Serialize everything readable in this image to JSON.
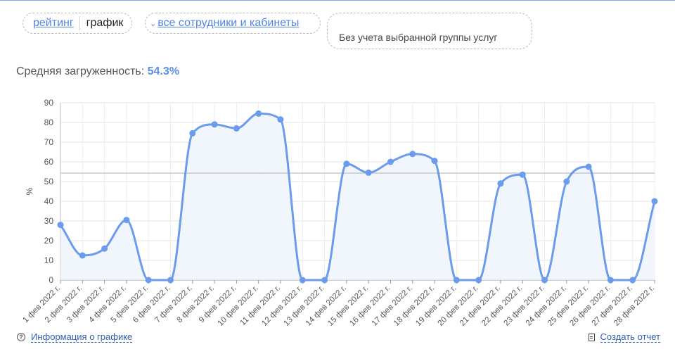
{
  "toolbar": {
    "rating_label": "рейтинг",
    "chart_label": "график",
    "staff_filter_label": "все сотрудники и кабинеты",
    "service_group_label": "Без учета выбранной группы услуг"
  },
  "summary": {
    "label": "Средняя загруженность:",
    "value": "54.3%"
  },
  "footer": {
    "info_label": "Информация о графике",
    "report_label": "Создать отчет"
  },
  "colors": {
    "line": "#6b9bec",
    "fill": "#eef4fd",
    "average_line": "#c8c8c8",
    "link": "#4f86e8"
  },
  "icons": {
    "info": "question-circle-icon",
    "report": "document-icon",
    "staff_filter": "chevron-down-icon"
  },
  "chart_data": {
    "type": "area",
    "ylabel": "%",
    "xlabel": "",
    "ylim": [
      0,
      90
    ],
    "yticks": [
      0,
      10,
      20,
      30,
      40,
      50,
      60,
      70,
      80,
      90
    ],
    "grid": true,
    "average": 54.3,
    "categories": [
      "1 фев 2022 г.",
      "2 фев 2022 г.",
      "3 фев 2022 г.",
      "4 фев 2022 г.",
      "5 фев 2022 г.",
      "6 фев 2022 г.",
      "7 фев 2022 г.",
      "8 фев 2022 г.",
      "9 фев 2022 г.",
      "10 фев 2022 г.",
      "11 фев 2022 г.",
      "12 фев 2022 г.",
      "13 фев 2022 г.",
      "14 фев 2022 г.",
      "15 фев 2022 г.",
      "16 фев 2022 г.",
      "17 фев 2022 г.",
      "18 фев 2022 г.",
      "19 фев 2022 г.",
      "20 фев 2022 г.",
      "21 фев 2022 г.",
      "22 фев 2022 г.",
      "23 фев 2022 г.",
      "24 фев 2022 г.",
      "25 фев 2022 г.",
      "26 фев 2022 г.",
      "27 фев 2022 г.",
      "28 фев 2022 г."
    ],
    "values": [
      28,
      12.5,
      16,
      30.5,
      0,
      0,
      74.5,
      79,
      77,
      84.5,
      81.5,
      0,
      0,
      59,
      54.5,
      60,
      64,
      60.5,
      0,
      0,
      49,
      53.5,
      0,
      50,
      57.5,
      0,
      0,
      40
    ]
  }
}
